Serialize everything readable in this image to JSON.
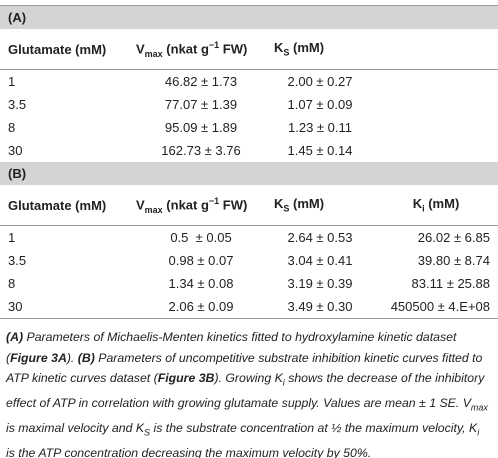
{
  "section_a": {
    "label": "(A)",
    "headers": [
      "Glutamate (mM)",
      {
        "main": "V",
        "sub": "max",
        "rest": " (nkat g",
        "sup": "−1",
        "end": " FW)"
      },
      {
        "main": "K",
        "sub": "S",
        "rest": " (mM)"
      }
    ],
    "rows": [
      [
        "1",
        "46.82 ± 1.73",
        "2.00 ± 0.27"
      ],
      [
        "3.5",
        "77.07 ± 1.39",
        "1.07 ± 0.09"
      ],
      [
        "8",
        "95.09 ± 1.89",
        "1.23 ± 0.11"
      ],
      [
        "30",
        "162.73 ± 3.76",
        "1.45 ± 0.14"
      ]
    ]
  },
  "section_b": {
    "label": "(B)",
    "headers": [
      "Glutamate (mM)",
      {
        "main": "V",
        "sub": "max",
        "rest": " (nkat g",
        "sup": "−1",
        "end": " FW)"
      },
      {
        "main": "K",
        "sub": "S",
        "rest": " (mM)"
      },
      {
        "main": "K",
        "sub": "i",
        "rest": " (mM)"
      }
    ],
    "rows": [
      [
        "1",
        "0.5  ± 0.05",
        "2.64 ± 0.53",
        "26.02 ± 6.85"
      ],
      [
        "3.5",
        "0.98 ± 0.07",
        "3.04 ± 0.41",
        "39.80 ± 8.74"
      ],
      [
        "8",
        "1.34 ± 0.08",
        "3.19 ± 0.39",
        "83.11 ± 25.88"
      ],
      [
        "30",
        "2.06 ± 0.09",
        "3.49 ± 0.30",
        "450500 ± 4.E+08"
      ]
    ]
  },
  "caption": [
    "(A)",
    " Parameters of Michaelis-Menten kinetics fitted to hydroxylamine kinetic dataset (",
    "Figure 3A",
    "). ",
    "(B)",
    " Parameters of uncompetitive substrate inhibition kinetic curves fitted to ATP kinetic curves dataset (",
    "Figure 3B",
    "). Growing K",
    "i",
    " shows the decrease of the inhibitory effect of ATP in correlation with growing glutamate supply. Values are mean ± 1 SE. V",
    "max",
    " is maximal velocity and K",
    "S",
    " is the substrate concentration at ½ the maximum velocity, K",
    "i",
    " is the ATP concentration decreasing the maximum velocity by 50%."
  ]
}
